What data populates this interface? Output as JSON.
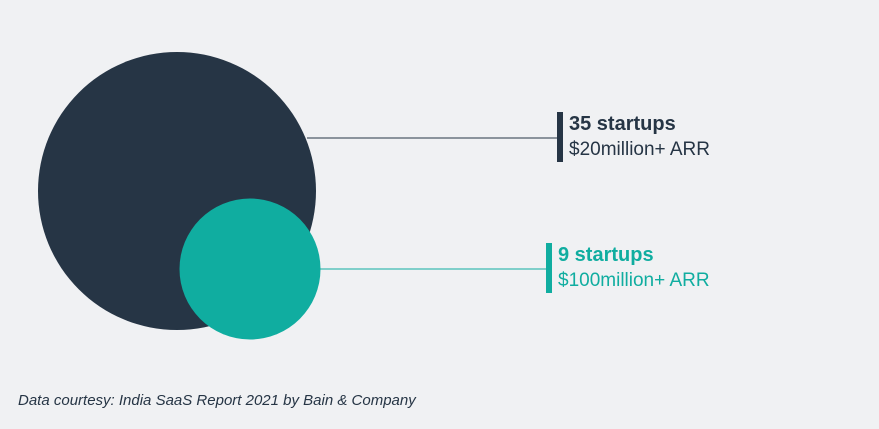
{
  "chart_data": {
    "type": "bubble",
    "series": [
      {
        "count": 35,
        "count_label": "35 startups",
        "description": "$20million+ ARR",
        "color": "#263545"
      },
      {
        "count": 9,
        "count_label": "9 startups",
        "description": "$100million+ ARR",
        "color": "#10ada0"
      }
    ]
  },
  "footer": {
    "source": "Data courtesy: India SaaS Report 2021 by Bain & Company"
  }
}
